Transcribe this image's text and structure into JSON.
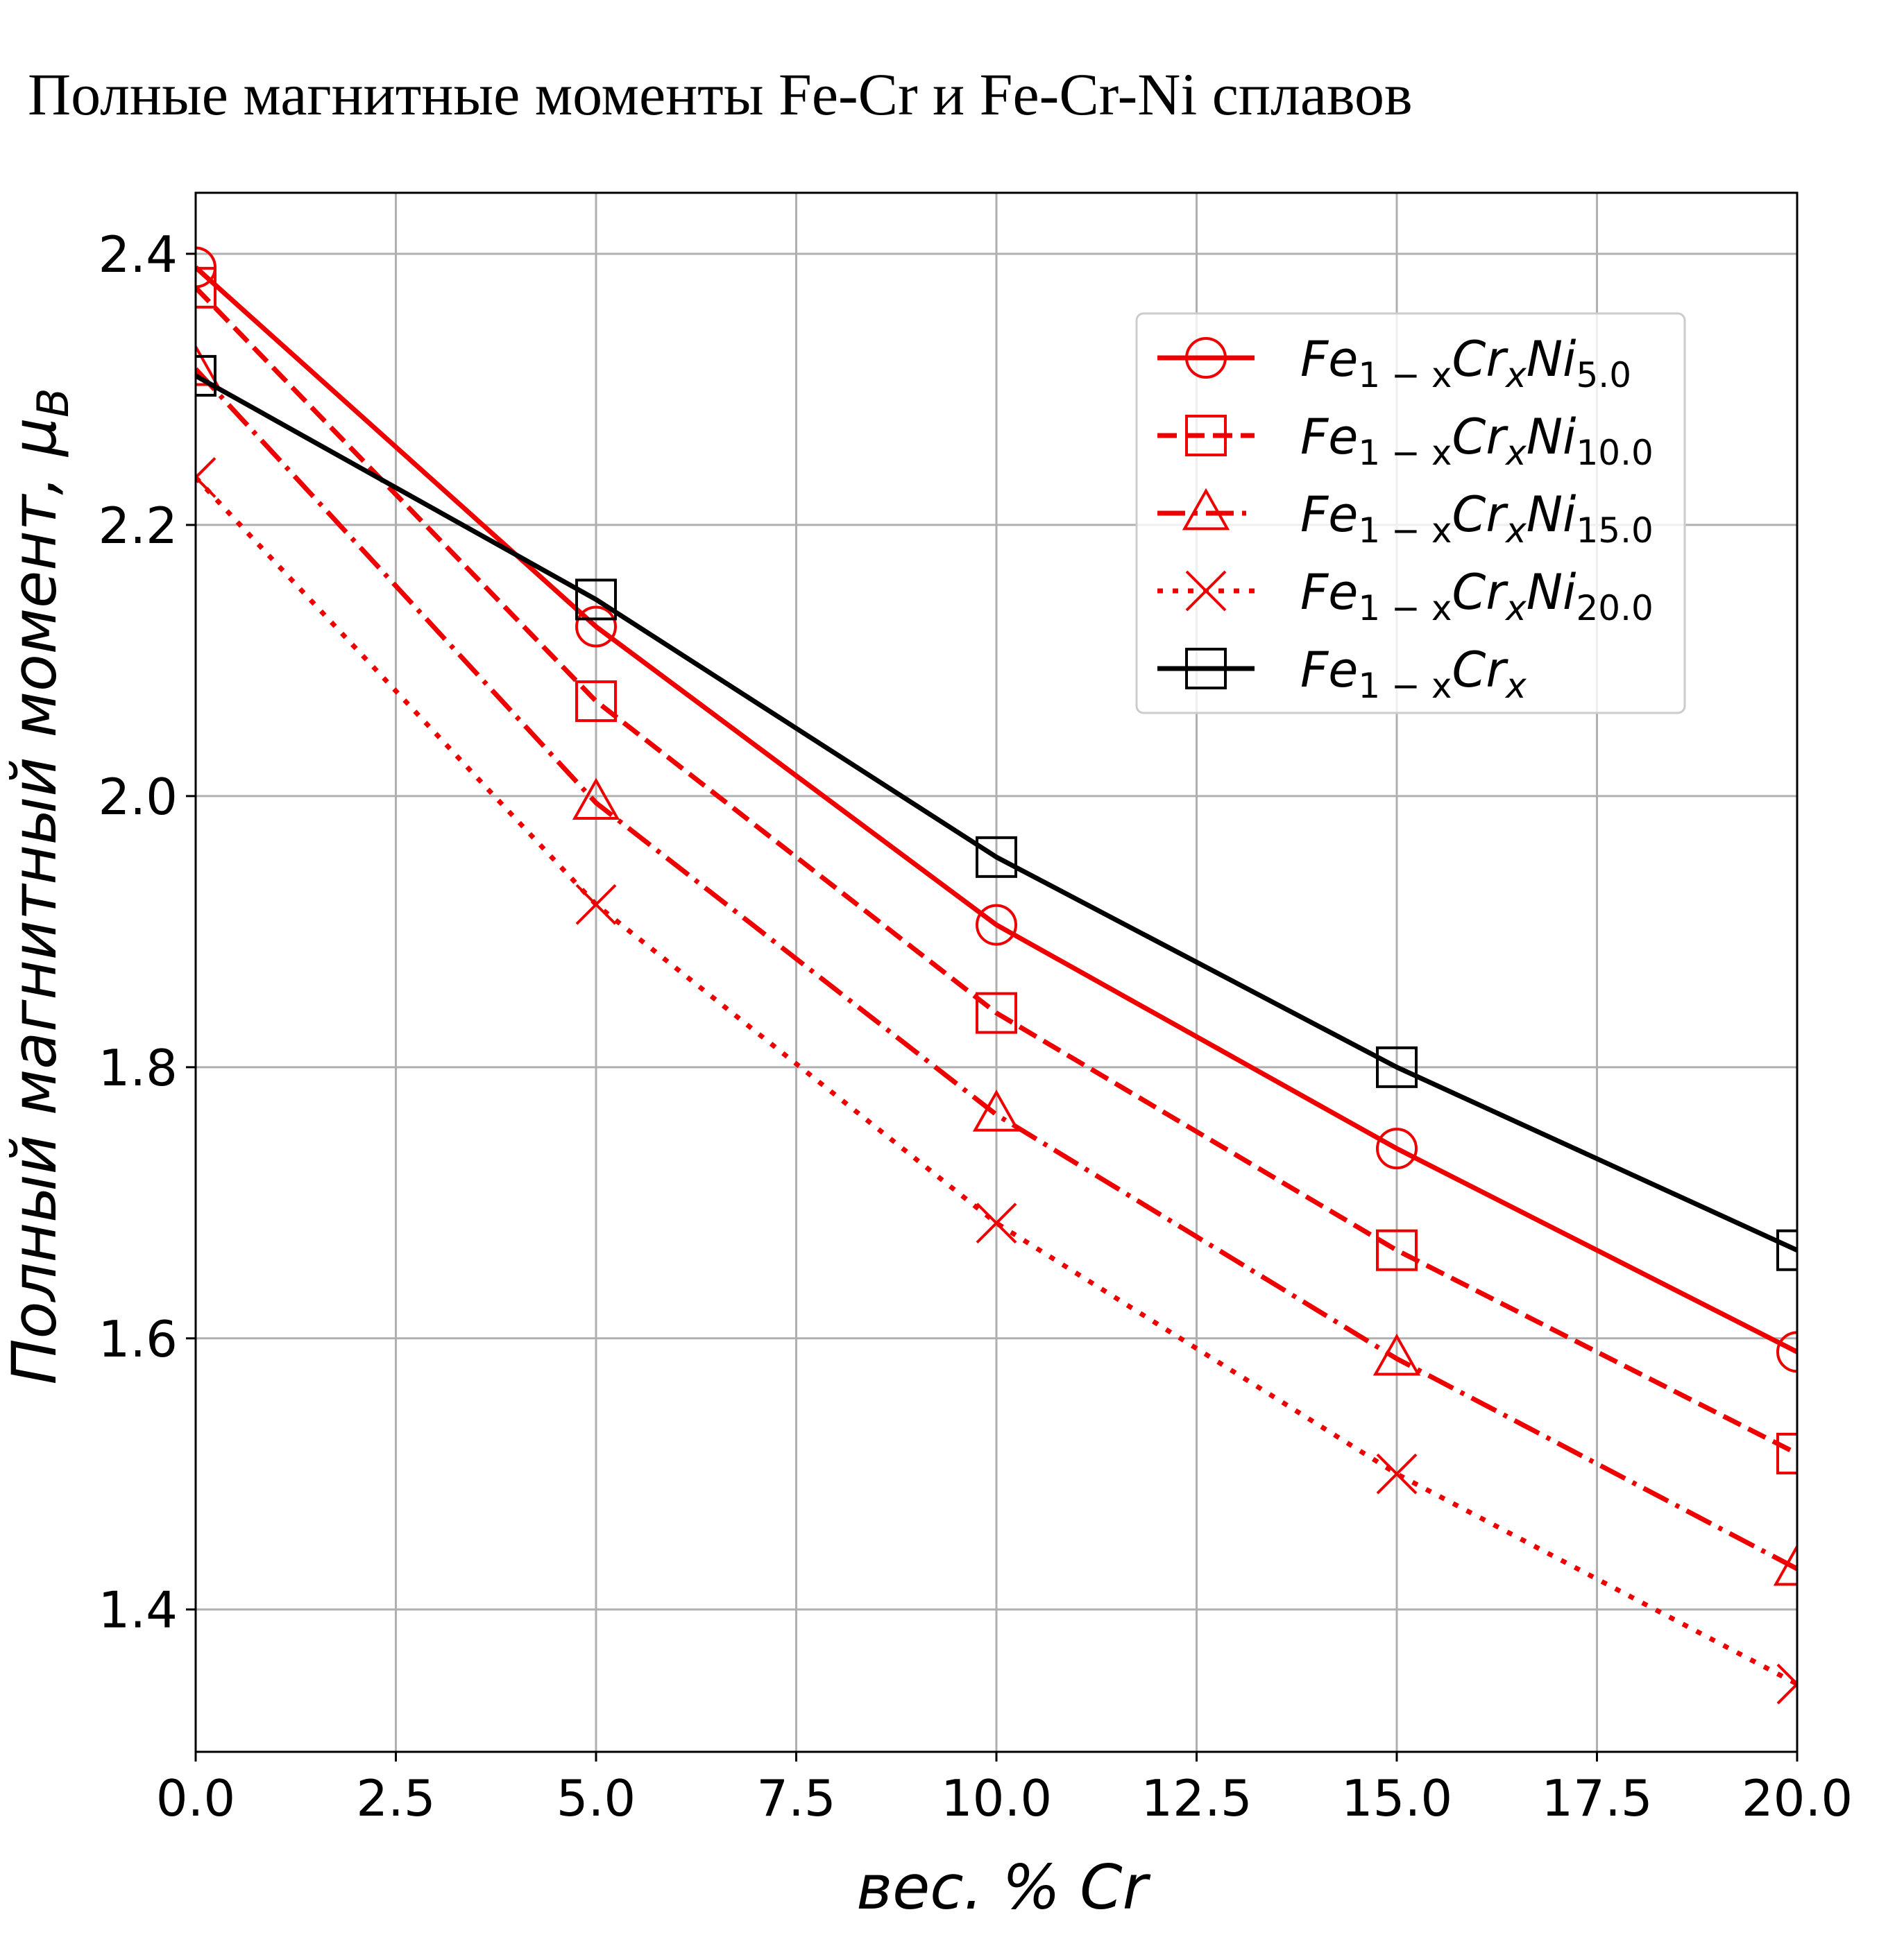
{
  "title": "Полные магнитные моменты Fe-Cr и Fe-Cr-Ni сплавов",
  "chart_data": {
    "type": "line",
    "title": "Полные магнитные моменты Fe-Cr и Fe-Cr-Ni сплавов",
    "xlabel": "вес. % Cr",
    "ylabel": "Полный магнитный момент, μB",
    "xlim": [
      0.0,
      20.0
    ],
    "ylim": [
      1.295,
      2.445
    ],
    "xticks": [
      "0.0",
      "2.5",
      "5.0",
      "7.5",
      "10.0",
      "12.5",
      "15.0",
      "17.5",
      "20.0"
    ],
    "yticks": [
      "1.4",
      "1.6",
      "1.8",
      "2.0",
      "2.2",
      "2.4"
    ],
    "grid": true,
    "legend_position": "upper right",
    "x": [
      0,
      5,
      10,
      15,
      20
    ],
    "series": [
      {
        "name": "Fe1−xCrxNi5.0",
        "name_parts": [
          "Fe",
          "1 − x",
          "Cr",
          "x",
          "Ni",
          "5.0"
        ],
        "values": [
          2.39,
          2.125,
          1.905,
          1.74,
          1.59
        ],
        "color": "#ee0000",
        "dash": "solid",
        "marker": "circle"
      },
      {
        "name": "Fe1−xCrxNi10.0",
        "name_parts": [
          "Fe",
          "1 − x",
          "Cr",
          "x",
          "Ni",
          "10.0"
        ],
        "values": [
          2.375,
          2.07,
          1.84,
          1.665,
          1.515
        ],
        "color": "#ee0000",
        "dash": "dashed",
        "marker": "square"
      },
      {
        "name": "Fe1−xCrxNi15.0",
        "name_parts": [
          "Fe",
          "1 − x",
          "Cr",
          "x",
          "Ni",
          "15.0"
        ],
        "values": [
          2.315,
          1.995,
          1.765,
          1.585,
          1.43
        ],
        "color": "#ee0000",
        "dash": "dashdot",
        "marker": "triangle"
      },
      {
        "name": "Fe1−xCrxNi20.0",
        "name_parts": [
          "Fe",
          "1 − x",
          "Cr",
          "x",
          "Ni",
          "20.0"
        ],
        "values": [
          2.235,
          1.92,
          1.685,
          1.5,
          1.345
        ],
        "color": "#ee0000",
        "dash": "dotted",
        "marker": "x"
      },
      {
        "name": "Fe1−xCrx",
        "name_parts": [
          "Fe",
          "1 − x",
          "Cr",
          "x",
          "",
          ""
        ],
        "values": [
          2.31,
          2.145,
          1.955,
          1.8,
          1.665
        ],
        "color": "#000000",
        "dash": "solid",
        "marker": "square"
      }
    ]
  }
}
